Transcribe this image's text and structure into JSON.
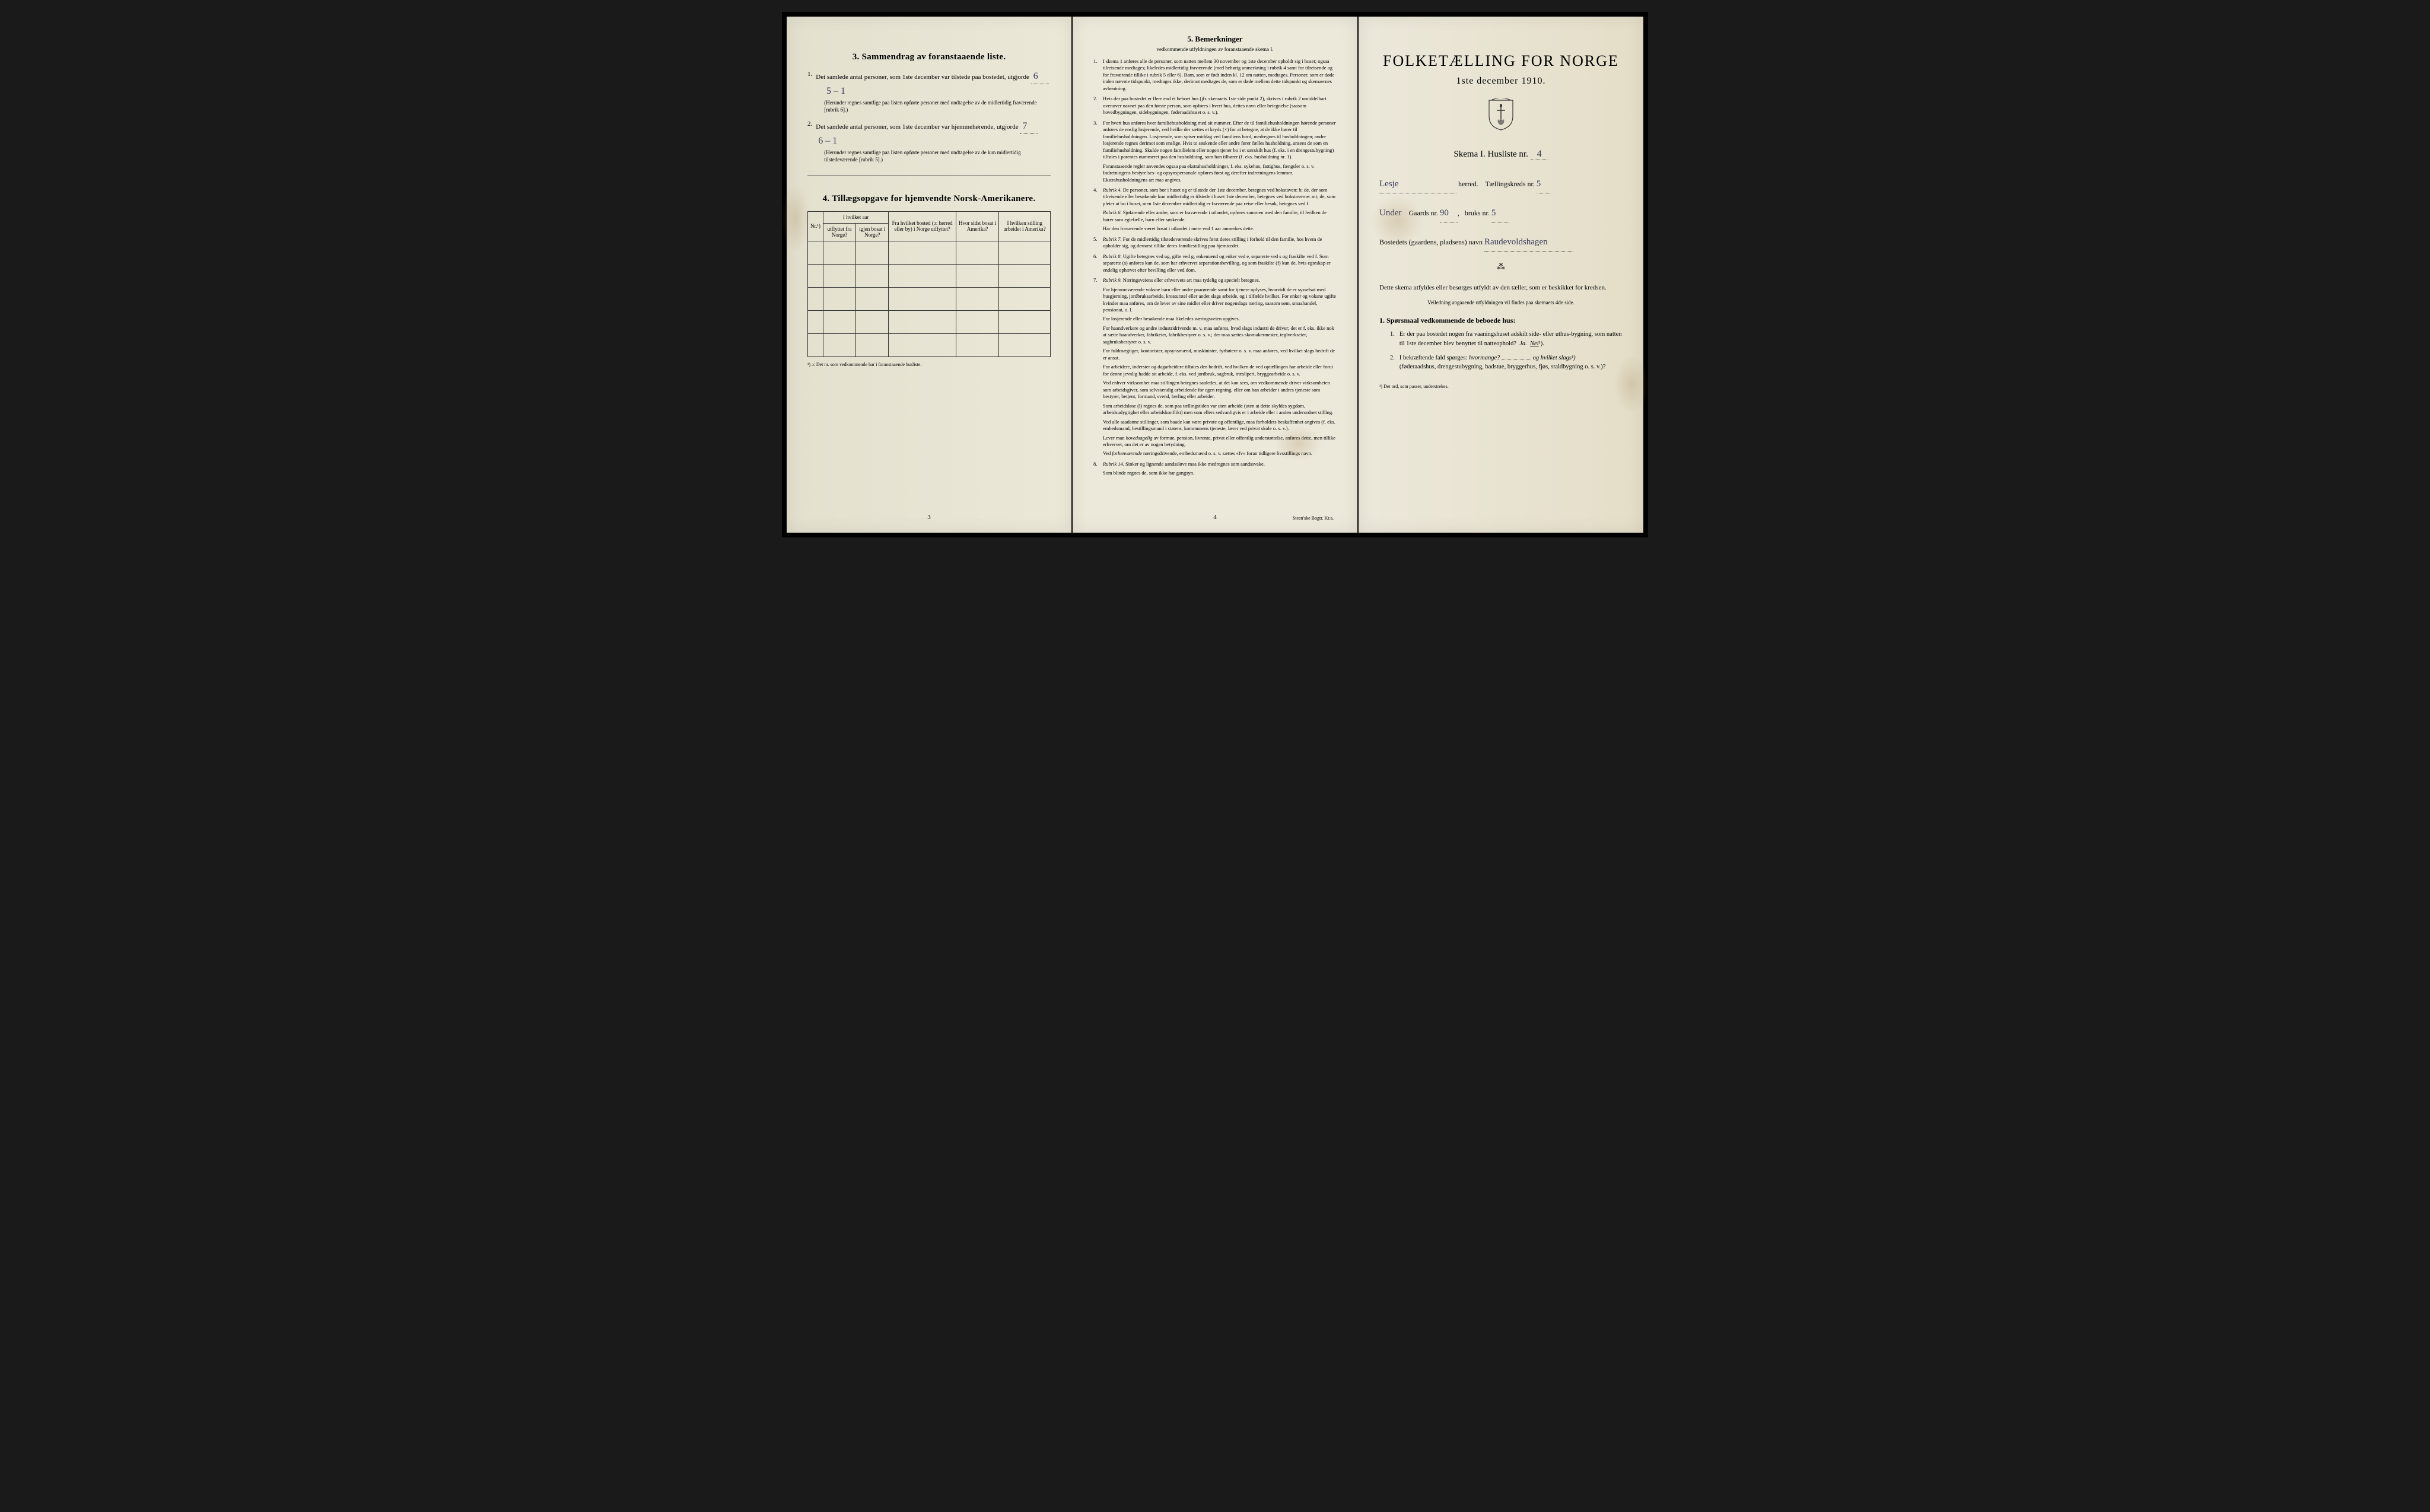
{
  "page1": {
    "section3_title": "3.  Sammendrag av foranstaaende liste.",
    "item1_text": "Det samlede antal personer, som 1ste december var tilstede paa bostedet, utgjorde",
    "item1_hw_a": "6",
    "item1_hw_b": "5 – 1",
    "item1_note": "(Herunder regnes samtlige paa listen opførte personer med undtagelse av de midlertidig fraværende [rubrik 6].)",
    "item2_text": "Det samlede antal personer, som 1ste december var hjemmehørende, utgjorde",
    "item2_hw_a": "7",
    "item2_hw_b": "6 – 1",
    "item2_note": "(Herunder regnes samtlige paa listen opførte personer med undtagelse av de kun midlertidig tilstedeværende [rubrik 5].)",
    "section4_title": "4.  Tillægsopgave for hjemvendte Norsk-Amerikanere.",
    "table_headers": {
      "col1": "Nr.¹)",
      "col2_top": "I hvilket aar",
      "col2a": "utflyttet fra Norge?",
      "col2b": "igjen bosat i Norge?",
      "col3": "Fra hvilket bosted (ɔ: herred eller by) i Norge utflyttet?",
      "col4": "Hvor sidst bosat i Amerika?",
      "col5": "I hvilken stilling arbeidet i Amerika?"
    },
    "footnote": "¹) ɔ: Det nr. som vedkommende har i foranstaaende husliste.",
    "page_num": "3"
  },
  "page2": {
    "section5_title": "5.  Bemerkninger",
    "section5_sub": "vedkommende utfyldningen av foranstaaende skema I.",
    "items": [
      {
        "n": "1.",
        "text": "I skema 1 anføres alle de personer, som natten mellem 30 november og 1ste december opholdt sig i huset; ogsaa tilreisende medtages; likeledes midlertidig fraværende (med behørig anmerkning i rubrik 4 samt for tilreisende og for fraværende tillike i rubrik 5 eller 6). Barn, som er født inden kl. 12 om natten, medtages. Personer, som er døde inden nævnte tidspunkt, medtages ikke; derimot medtages de, som er døde mellem dette tidspunkt og skemaernes avhentning."
      },
      {
        "n": "2.",
        "text": "Hvis der paa bostedet er flere end ét beboet hus (jfr. skemaets 1ste side punkt 2), skrives i rubrik 2 umiddelbart ovenover navnet paa den første person, som opføres i hvert hus, dettes navn eller betegnelse (saasom hovedbygningen, sidebygningen, føderaadshuset o. s. v.)."
      },
      {
        "n": "3.",
        "text": "For hvert hus anføres hver familiehusholdning med sit nummer. Efter de til familiehusholdningen hørende personer anføres de enslig losjerende, ved hvilke der sættes et kryds (×) for at betegne, at de ikke hører til familiehusholdningen. Losjerende, som spiser middag ved familiens bord, medregnes til husholdningen; andre losjerende regnes derimot som enslige. Hvis to søskende eller andre fører fælles husholdning, ansees de som en familiehusholdning. Skulde nogen familielem eller nogen tjener bo i et særskilt hus (f. eks. i en drengestubygning) tilføies i parentes nummeret paa den husholdning, som han tilhører (f. eks. husholdning nr. 1).",
        "sub": "Foranstaaende regler anvendes ogsaa paa ekstrahusholdninger, f. eks. sykehus, fattighus, fængsler o. s. v. Indretningens bestyrelses- og opsynspersonale opføres først og derefter indretningens lemmer. Ekstrahusholdningens art maa angives."
      },
      {
        "n": "4.",
        "text": "Rubrik 4. De personer, som bor i huset og er tilstede der 1ste december, betegnes ved bokstaven: b; de, der som tilreisende eller besøkende kun midlertidig er tilstede i huset 1ste december, betegnes ved bokstaverne: mt; de, som pleier at bo i huset, men 1ste december midlertidig er fraværende paa reise eller besøk, betegnes ved f.",
        "sub": "Rubrik 6. Sjøfarende eller andre, som er fraværende i utlandet, opføres sammen med den familie, til hvilken de hører som egtefælle, barn eller søskende.",
        "sub2": "Har den fraværende været bosat i utlandet i mere end 1 aar anmerkes dette."
      },
      {
        "n": "5.",
        "text": "Rubrik 7. For de midlertidig tilstedeværende skrives først deres stilling i forhold til den familie, hos hvem de opholder sig, og dernæst tillike deres familiestilling paa hjemstedet."
      },
      {
        "n": "6.",
        "text": "Rubrik 8. Ugifte betegnes ved ug, gifte ved g, enkemænd og enker ved e, separerte ved s og fraskilte ved f. Som separerte (s) anføres kun de, som har erhvervet separationsbevilling, og som fraskilte (f) kun de, hvis egteskap er endelig ophævet efter bevilling eller ved dom."
      },
      {
        "n": "7.",
        "text": "Rubrik 9. Næringsveiens eller erhvervets art maa tydelig og specielt betegnes.",
        "paras": [
          "For hjemmeværende voksne barn eller andre paarørende samt for tjenere oplyses, hvorvidt de er sysselsat med husgjerning, jordbruksarbeide, kreaturstel eller andet slags arbeide, og i tilfælde hvilket. For enker og voksne ugifte kvinder maa anføres, om de lever av sine midler eller driver nogenslags næring, saasom søm, smaahandel, pensionat, o. l.",
          "For losjerende eller besøkende maa likeledes næringsveien opgives.",
          "For haandverkere og andre industridrivende m. v. maa anføres, hvad slags industri de driver; det er f. eks. ikke nok at sætte haandverker, fabrikeier, fabrikbestyrer o. s. v.; der maa sættes skomakermester, teglverkseier, sagbruksbestyrer o. s. v.",
          "For fuldmægtiger, kontorister, opsynsmænd, maskinister, fyrbøtere o. s. v. maa anføres, ved hvilket slags bedrift de er ansat.",
          "For arbeidere, inderster og dagarbeidere tilføies den bedrift, ved hvilken de ved optællingen har arbeide eller forut for denne jevnlig hadde sit arbeide, f. eks. ved jordbruk, sagbruk, træsliperi, bryggearbeide o. s. v.",
          "Ved enhver virksomhet maa stillingen betegnes saaledes, at det kan sees, om vedkommende driver virksomheten som arbeidsgiver, som selvstændig arbeidende for egen regning, eller om han arbeider i andres tjeneste som bestyrer, betjent, formand, svend, lærling eller arbeider.",
          "Som arbeidsløse (l) regnes de, som paa tællingstiden var uten arbeide (uten at dette skyldes sygdom, arbeidsudygtighet eller arbeidskonflikt) men som ellers sedvanligvis er i arbeide eller i anden underordnet stilling.",
          "Ved alle saadanne stillinger, som baade kan være private og offentlige, maa forholdets beskaffenhet angives (f. eks. embedsmand, bestillingsmand i statens, kommunens tjeneste, lærer ved privat skole o. s. v.).",
          "Lever man hovedsagelig av formue, pension, livrente, privat eller offentlig understøttelse, anføres dette, men tillike erhvervet, om det er av nogen betydning.",
          "Ved forhenværende næringsdrivende, embedsmænd o. s. v. sættes «fv» foran tidligere livsstillings navn."
        ]
      },
      {
        "n": "8.",
        "text": "Rubrik 14. Sinker og lignende aandssløve maa ikke medregnes som aandssvake.",
        "sub": "Som blinde regnes de, som ikke har gangsyn."
      }
    ],
    "page_num": "4",
    "printer": "Steen'ske Bogtr.  Kr.a."
  },
  "page3": {
    "main_title": "FOLKETÆLLING FOR NORGE",
    "main_subtitle": "1ste december 1910.",
    "skema_text": "Skema I.   Husliste nr.",
    "skema_hw": "4",
    "herred_hw": "Lesje",
    "herred_label": "herred.",
    "kreds_label": "Tællingskreds nr.",
    "kreds_hw": "5",
    "under_hw": "Under",
    "gaard_label": "Gaards nr.",
    "gaard_hw": "90",
    "bruks_label": "bruks nr.",
    "bruks_hw": "5",
    "bosted_label": "Bostedets (gaardens, pladsens) navn",
    "bosted_hw": "Raudevoldshagen",
    "instruction": "Dette skema utfyldes eller besørges utfyldt av den tæller, som er beskikket for kredsen.",
    "instruction_sub": "Veiledning angaaende utfyldningen vil findes paa skemaets 4de side.",
    "q_heading": "1. Spørsmaal vedkommende de beboede hus:",
    "q1_n": "1.",
    "q1_text": "Er der paa bostedet nogen fra vaaningshuset adskilt side- eller uthus-bygning, som natten til 1ste december blev benyttet til natteophold?",
    "q1_ja": "Ja.",
    "q1_nei": "Nei",
    "q1_sup": "¹).",
    "q2_n": "2.",
    "q2_text_a": "I bekræftende fald spørges:",
    "q2_text_b": "hvormange?",
    "q2_text_c": "og hvilket slags¹)",
    "q2_text_d": "(føderaadshus, drengestubygning, badstue, bryggerhus, fjøs, staldbygning o. s. v.)?",
    "footnote": "¹) Det ord, som passer, understrekes."
  }
}
